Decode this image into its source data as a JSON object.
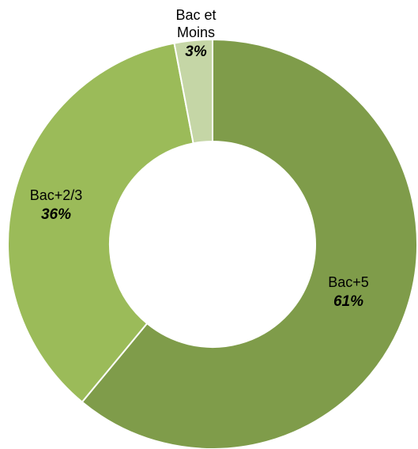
{
  "chart_data": {
    "type": "pie",
    "title": "",
    "hole": "donut",
    "slices": [
      {
        "label_lines": [
          "Bac+5"
        ],
        "value": 61,
        "value_text": "61%",
        "color": "#7f9c4a"
      },
      {
        "label_lines": [
          "Bac+2/3"
        ],
        "value": 36,
        "value_text": "36%",
        "color": "#9bbb59"
      },
      {
        "label_lines": [
          "Bac et",
          "Moins"
        ],
        "value": 3,
        "value_text": "3%",
        "color": "#c5d6a6"
      }
    ],
    "legend": "none",
    "separator_color": "#ffffff"
  }
}
